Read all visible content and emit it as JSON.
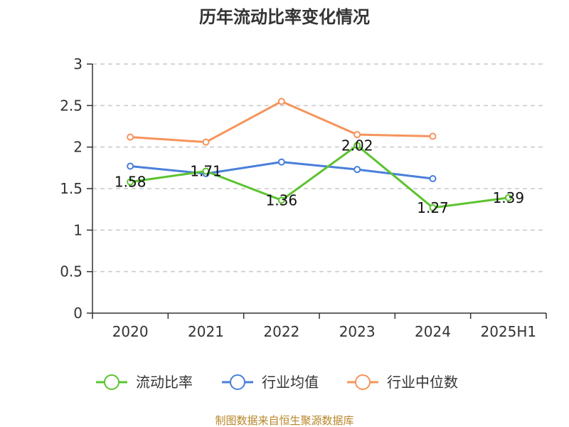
{
  "chart_data": {
    "type": "line",
    "title": "历年流动比率变化情况",
    "categories": [
      "2020",
      "2021",
      "2022",
      "2023",
      "2024",
      "2025H1"
    ],
    "ylim": [
      0,
      3
    ],
    "yticks": [
      "0",
      "0.5",
      "1",
      "1.5",
      "2",
      "2.5",
      "3"
    ],
    "ytick_values": [
      0,
      0.5,
      1,
      1.5,
      2,
      2.5,
      3
    ],
    "grid": true,
    "legend_position": "bottom",
    "series": [
      {
        "name": "流动比率",
        "color": "#5cc330",
        "values": [
          1.58,
          1.71,
          1.36,
          2.02,
          1.27,
          1.39
        ],
        "labels": [
          "1.58",
          "1.71",
          "1.36",
          "2.02",
          "1.27",
          "1.39"
        ],
        "show_labels": true
      },
      {
        "name": "行业均值",
        "color": "#4a7fdb",
        "values": [
          1.77,
          1.68,
          1.82,
          1.73,
          1.62,
          null
        ],
        "show_labels": false
      },
      {
        "name": "行业中位数",
        "color": "#f5945c",
        "values": [
          2.12,
          2.06,
          2.55,
          2.15,
          2.13,
          null
        ],
        "show_labels": false
      }
    ],
    "source": "制图数据来自恒生聚源数据库"
  }
}
